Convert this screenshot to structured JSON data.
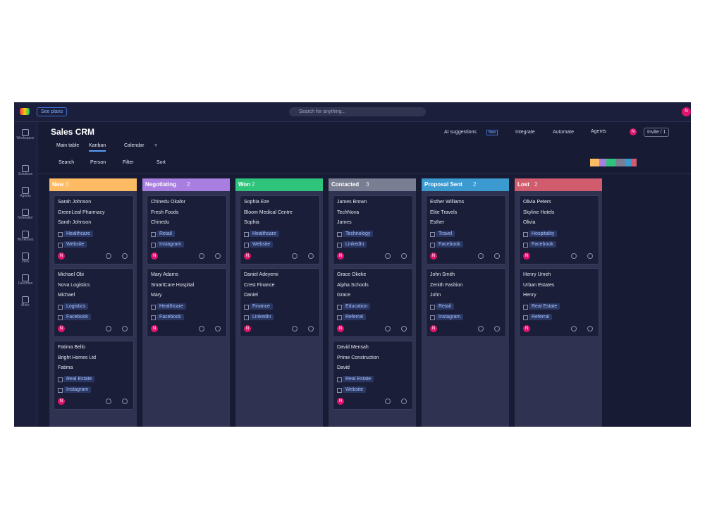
{
  "topbar": {
    "plans": "See plans",
    "search": "Search for anything...",
    "avatar": "N"
  },
  "sidebar": [
    "Workspace",
    "Solutions",
    "Agents",
    "Notetaker",
    "Workflows",
    "View",
    "Favorites",
    "More"
  ],
  "header": {
    "title": "Sales CRM",
    "tabs": [
      "Main table",
      "Kanban",
      "Calendar",
      "+"
    ],
    "ai": "AI suggestions",
    "ai_badge": "New",
    "integrate": "Integrate",
    "automate": "Automate",
    "agents": "Agents",
    "invite": "Invite / 1"
  },
  "toolbar": [
    "Search",
    "Person",
    "Filter",
    "Sort"
  ],
  "card_avatar": "N",
  "columns": [
    {
      "name": "New",
      "count": 3,
      "color": "#fdbc64",
      "cards": [
        {
          "name": "Sarah Johnson",
          "company": "GreenLeaf Pharmacy",
          "contact": "Sarah Johnson",
          "tags": [
            "Healthcare",
            "Website"
          ]
        },
        {
          "name": "Michael Obi",
          "company": "Nova Logistics",
          "contact": "Michael",
          "tags": [
            "Logistics",
            "Facebook"
          ]
        },
        {
          "name": "Fatima Bello",
          "company": "Bright Homes Ltd",
          "contact": "Fatima",
          "tags": [
            "Real Estate",
            "Instagram"
          ]
        }
      ]
    },
    {
      "name": "Negotiating",
      "count": 2,
      "color": "#a87ee0",
      "cards": [
        {
          "name": "Chinedu Okafor",
          "company": "Fresh Foods",
          "contact": "Chinedu",
          "tags": [
            "Retail",
            "Instagram"
          ]
        },
        {
          "name": "Mary Adams",
          "company": "SmartCare Hospital",
          "contact": "Mary",
          "tags": [
            "Healthcare",
            "Facebook"
          ]
        }
      ]
    },
    {
      "name": "Won",
      "count": 2,
      "color": "#2fc47c",
      "cards": [
        {
          "name": "Sophia Eze",
          "company": "Bloom Medical Centre",
          "contact": "Sophia",
          "tags": [
            "Healthcare",
            "Website"
          ]
        },
        {
          "name": "Daniel Adeyemi",
          "company": "Crest Finance",
          "contact": "Daniel",
          "tags": [
            "Finance",
            "LinkedIn"
          ]
        }
      ]
    },
    {
      "name": "Contacted",
      "count": 3,
      "color": "#7a7e92",
      "cards": [
        {
          "name": "James Brown",
          "company": "TechNova",
          "contact": "James",
          "tags": [
            "Technology",
            "LinkedIn"
          ]
        },
        {
          "name": "Grace Okeke",
          "company": "Alpha Schools",
          "contact": "Grace",
          "tags": [
            "Education",
            "Referral"
          ]
        },
        {
          "name": "David Mensah",
          "company": "Prime Construction",
          "contact": "David",
          "tags": [
            "Real Estate",
            "Website"
          ]
        }
      ]
    },
    {
      "name": "Proposal Sent",
      "count": 2,
      "color": "#3b9ad0",
      "cards": [
        {
          "name": "Esther Williams",
          "company": "Elite Travels",
          "contact": "Esther",
          "tags": [
            "Travel",
            "Facebook"
          ]
        },
        {
          "name": "John Smith",
          "company": "Zenith Fashion",
          "contact": "John",
          "tags": [
            "Retail",
            "Instagram"
          ]
        }
      ]
    },
    {
      "name": "Lost",
      "count": 2,
      "color": "#d05c6e",
      "cards": [
        {
          "name": "Olivia Peters",
          "company": "Skyline Hotels",
          "contact": "Olivia",
          "tags": [
            "Hospitality",
            "Facebook"
          ]
        },
        {
          "name": "Henry Umeh",
          "company": "Urban Estates",
          "contact": "Henry",
          "tags": [
            "Real Estate",
            "Referral"
          ]
        }
      ]
    }
  ]
}
